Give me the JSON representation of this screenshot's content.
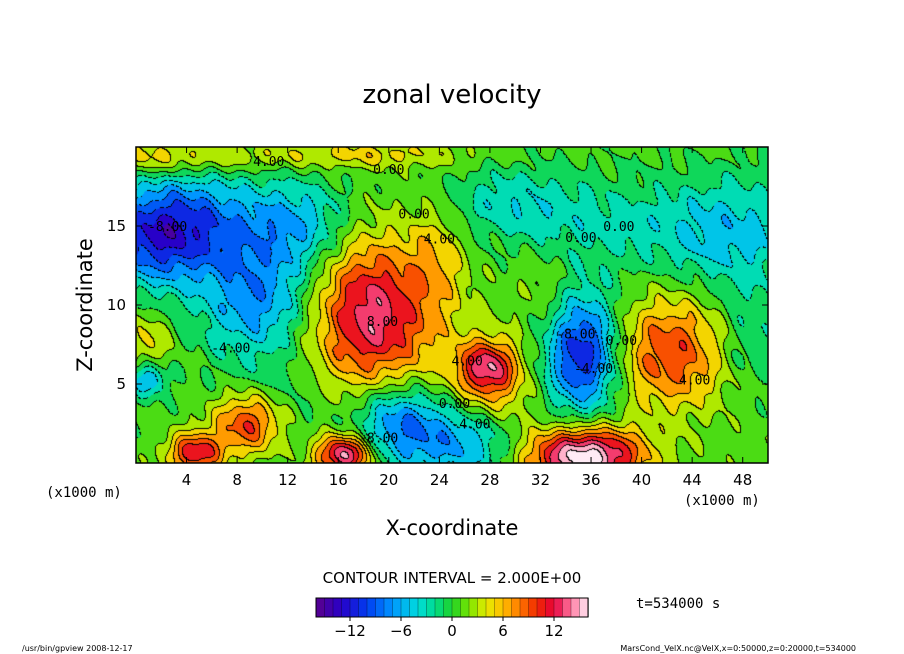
{
  "chart_data": {
    "type": "heatmap",
    "title": "zonal velocity",
    "xlabel": "X-coordinate",
    "ylabel": "Z-coordinate",
    "x_unit_label": "(x1000 m)",
    "z_unit_label": "(x1000 m)",
    "xlim": [
      0,
      50
    ],
    "ylim": [
      0,
      20
    ],
    "x_ticks": [
      4,
      8,
      12,
      16,
      20,
      24,
      28,
      32,
      36,
      40,
      44,
      48
    ],
    "y_ticks": [
      5,
      10,
      15
    ],
    "contour_interval_text": "CONTOUR INTERVAL = 2.000E+00",
    "colorbar_range": [
      -16,
      16
    ],
    "colorbar_ticks": [
      -12,
      -6,
      0,
      6,
      12
    ],
    "time_label": "t=534000 s",
    "contour_labels": [
      {
        "x": 10.5,
        "z": 19.1,
        "text": "4.00"
      },
      {
        "x": 20.0,
        "z": 18.6,
        "text": "0.00"
      },
      {
        "x": 22.0,
        "z": 15.8,
        "text": "0.00"
      },
      {
        "x": 2.5,
        "z": 15.0,
        "text": "-8.00"
      },
      {
        "x": 7.5,
        "z": 7.3,
        "text": "-4.00"
      },
      {
        "x": 19.5,
        "z": 9.0,
        "text": "8.00"
      },
      {
        "x": 24.0,
        "z": 14.2,
        "text": "4.00"
      },
      {
        "x": 26.2,
        "z": 6.5,
        "text": "4.00"
      },
      {
        "x": 25.2,
        "z": 3.8,
        "text": "0.00"
      },
      {
        "x": 26.5,
        "z": 2.5,
        "text": "-4.00"
      },
      {
        "x": 19.2,
        "z": 1.6,
        "text": "-8.00"
      },
      {
        "x": 34.8,
        "z": 8.2,
        "text": "-8.00"
      },
      {
        "x": 36.2,
        "z": 6.0,
        "text": "-4.00"
      },
      {
        "x": 38.4,
        "z": 7.8,
        "text": "0.00"
      },
      {
        "x": 44.2,
        "z": 5.3,
        "text": "4.00"
      },
      {
        "x": 35.2,
        "z": 14.3,
        "text": "0.00"
      },
      {
        "x": 38.2,
        "z": 15.0,
        "text": "0.00"
      }
    ],
    "features": [
      {
        "x": 18.5,
        "z": 10.0,
        "u": 10,
        "sx": 3.0,
        "sz": 3.2
      },
      {
        "x": 20.0,
        "z": 6.8,
        "u": 4,
        "sx": 4.5,
        "sz": 3.5
      },
      {
        "x": 23.8,
        "z": 13.0,
        "u": 4,
        "sx": 1.6,
        "sz": 2.6
      },
      {
        "x": 27.8,
        "z": 6.1,
        "u": 10,
        "sx": 1.6,
        "sz": 1.2
      },
      {
        "x": 28.5,
        "z": 4.5,
        "u": 4,
        "sx": 2.2,
        "sz": 1.8
      },
      {
        "x": 9.0,
        "z": 2.5,
        "u": 11,
        "sx": 2.0,
        "sz": 1.4
      },
      {
        "x": 4.7,
        "z": 0.6,
        "u": 11,
        "sx": 1.5,
        "sz": 0.9
      },
      {
        "x": 35.5,
        "z": 0.4,
        "u": 17,
        "sx": 3.2,
        "sz": 1.3
      },
      {
        "x": 16.5,
        "z": 0.5,
        "u": 14,
        "sx": 1.6,
        "sz": 0.9
      },
      {
        "x": 42.3,
        "z": 7.0,
        "u": 9,
        "sx": 3.0,
        "sz": 2.5
      },
      {
        "x": 1.0,
        "z": 7.5,
        "u": 4,
        "sx": 1.2,
        "sz": 1.5
      },
      {
        "x": 1.5,
        "z": 19.3,
        "u": 5,
        "sx": 6.0,
        "sz": 0.8
      },
      {
        "x": 18.0,
        "z": 19.5,
        "u": 4,
        "sx": 6.0,
        "sz": 0.6
      },
      {
        "x": 35.3,
        "z": 7.0,
        "u": -13,
        "sx": 2.0,
        "sz": 2.7
      },
      {
        "x": 20.8,
        "z": 2.6,
        "u": -10,
        "sx": 2.6,
        "sz": 1.9
      },
      {
        "x": 26.0,
        "z": 1.2,
        "u": -7,
        "sx": 3.0,
        "sz": 1.6
      },
      {
        "x": 1.5,
        "z": 14.2,
        "u": -10,
        "sx": 3.5,
        "sz": 2.2
      },
      {
        "x": 5.0,
        "z": 15.5,
        "u": -6,
        "sx": 4.0,
        "sz": 2.3
      },
      {
        "x": 9.5,
        "z": 10.3,
        "u": -8,
        "sx": 3.0,
        "sz": 2.6
      },
      {
        "x": 12.8,
        "z": 15.0,
        "u": -6,
        "sx": 3.0,
        "sz": 2.0
      },
      {
        "x": 1.0,
        "z": 5.3,
        "u": -8,
        "sx": 1.0,
        "sz": 0.8
      },
      {
        "x": 47.0,
        "z": 14.5,
        "u": -6,
        "sx": 4.0,
        "sz": 2.5
      },
      {
        "x": 37.0,
        "z": 15.0,
        "u": -3,
        "sx": 4.5,
        "sz": 2.0
      },
      {
        "x": 11.0,
        "z": 3.2,
        "u": -3,
        "sx": 3.0,
        "sz": 2.0
      },
      {
        "x": 33.0,
        "z": 10.5,
        "u": 2,
        "sx": 2.0,
        "sz": 2.0
      },
      {
        "x": 48.5,
        "z": 8.0,
        "u": -3,
        "sx": 1.6,
        "sz": 2.2
      },
      {
        "x": 29.5,
        "z": 16.5,
        "u": -4,
        "sx": 4.0,
        "sz": 1.6
      }
    ]
  },
  "footer": {
    "left": "/usr/bin/gpview   2008-12-17",
    "right": "MarsCond_VelX.nc@VelX,x=0:50000,z=0:20000,t=534000"
  },
  "colors": {
    "frame": "#000000",
    "background": "#ffffff"
  }
}
